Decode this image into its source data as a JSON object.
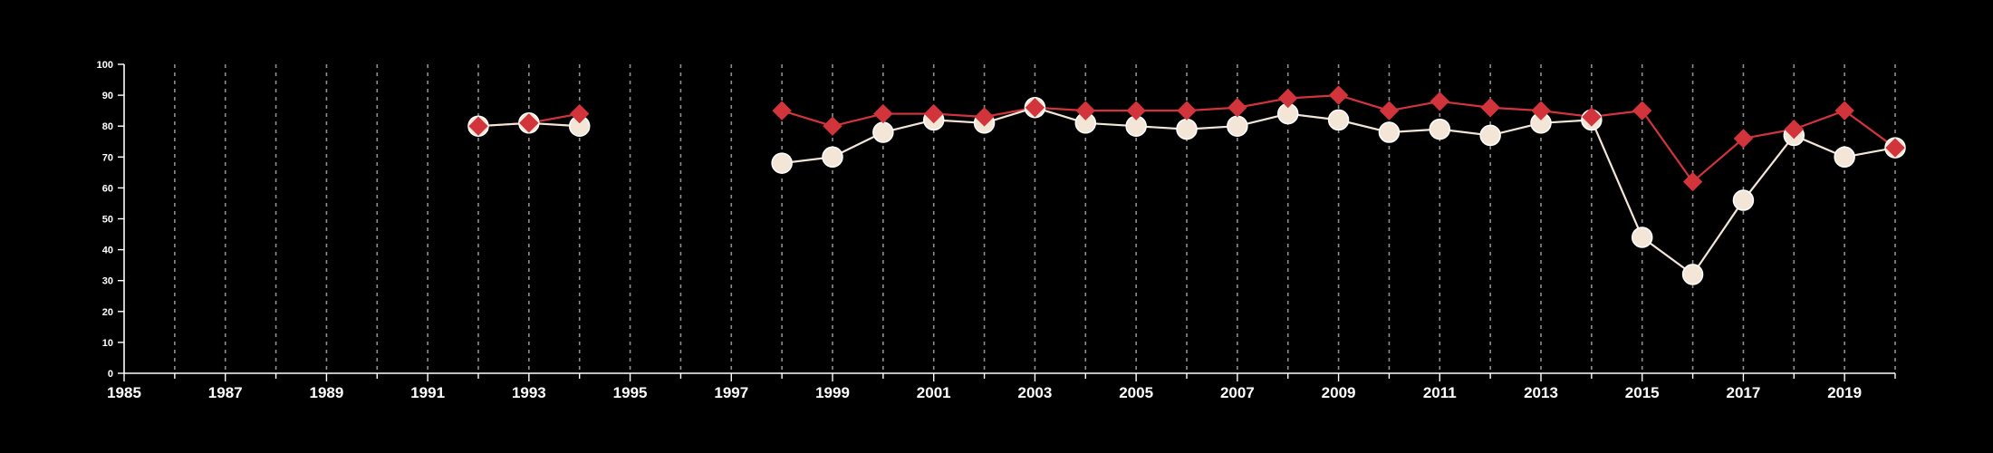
{
  "chart_data": {
    "type": "line",
    "title": "",
    "xlabel": "",
    "ylabel": "",
    "xlim": [
      1985,
      2020
    ],
    "ylim": [
      0,
      100
    ],
    "x_ticks": [
      1985,
      1987,
      1989,
      1991,
      1993,
      1995,
      1997,
      1999,
      2001,
      2003,
      2005,
      2007,
      2009,
      2011,
      2013,
      2015,
      2017,
      2019
    ],
    "y_ticks": [
      0,
      10,
      20,
      30,
      40,
      50,
      60,
      70,
      80,
      90,
      100
    ],
    "grid": "vertical dashed lines at each year",
    "legend": "none",
    "series": [
      {
        "color": "#d2343c",
        "marker": "diamond",
        "points": [
          [
            1992,
            80
          ],
          [
            1993,
            81
          ],
          [
            1994,
            84
          ],
          [
            1998,
            85
          ],
          [
            1999,
            80
          ],
          [
            2000,
            84
          ],
          [
            2001,
            84
          ],
          [
            2002,
            83
          ],
          [
            2003,
            86
          ],
          [
            2004,
            85
          ],
          [
            2005,
            85
          ],
          [
            2006,
            85
          ],
          [
            2007,
            86
          ],
          [
            2008,
            89
          ],
          [
            2009,
            90
          ],
          [
            2010,
            85
          ],
          [
            2011,
            88
          ],
          [
            2012,
            86
          ],
          [
            2013,
            85
          ],
          [
            2014,
            83
          ],
          [
            2015,
            85
          ],
          [
            2016,
            62
          ],
          [
            2017,
            76
          ],
          [
            2018,
            79
          ],
          [
            2019,
            85
          ],
          [
            2020,
            73
          ]
        ]
      },
      {
        "color": "#f3e6d7",
        "marker": "circle",
        "points": [
          [
            1992,
            80
          ],
          [
            1993,
            81
          ],
          [
            1994,
            80
          ],
          [
            1998,
            68
          ],
          [
            1999,
            70
          ],
          [
            2000,
            78
          ],
          [
            2001,
            82
          ],
          [
            2002,
            81
          ],
          [
            2003,
            86
          ],
          [
            2004,
            81
          ],
          [
            2005,
            80
          ],
          [
            2006,
            79
          ],
          [
            2007,
            80
          ],
          [
            2008,
            84
          ],
          [
            2009,
            82
          ],
          [
            2010,
            78
          ],
          [
            2011,
            79
          ],
          [
            2012,
            77
          ],
          [
            2013,
            81
          ],
          [
            2014,
            82
          ],
          [
            2015,
            44
          ],
          [
            2016,
            32
          ],
          [
            2017,
            56
          ],
          [
            2018,
            77
          ],
          [
            2019,
            70
          ],
          [
            2020,
            73
          ]
        ]
      }
    ]
  }
}
